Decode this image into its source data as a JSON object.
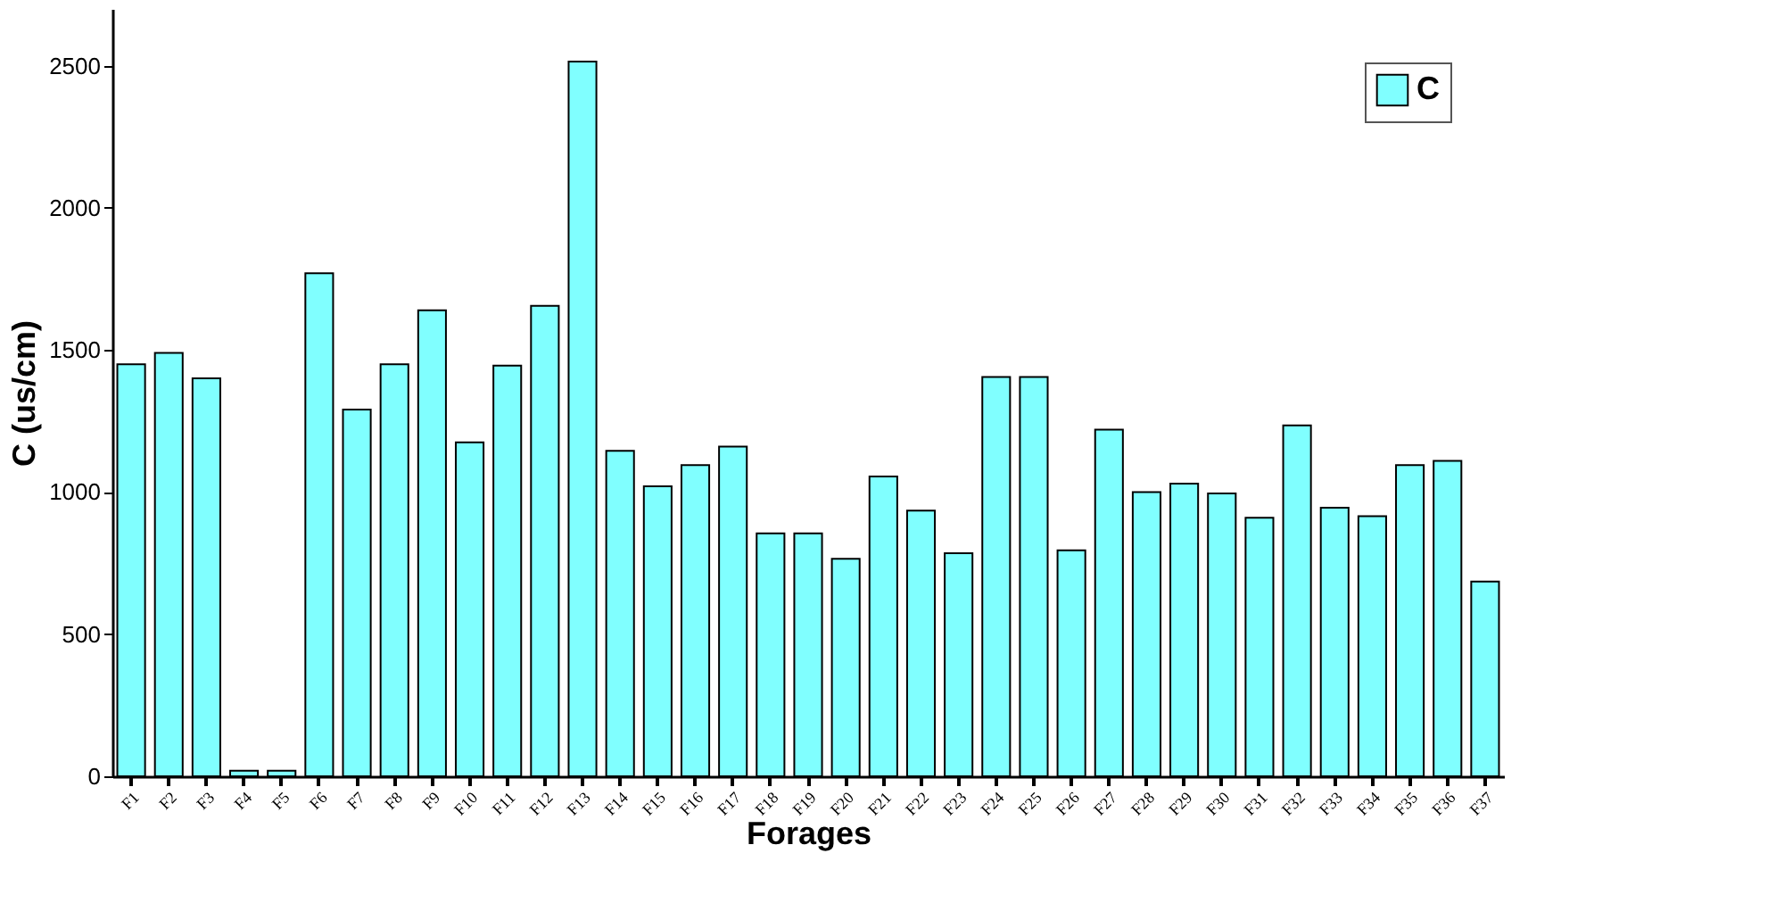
{
  "chart_data": {
    "type": "bar",
    "xlabel": "Forages",
    "ylabel": "C (us/cm)",
    "categories": [
      "F1",
      "F2",
      "F3",
      "F4",
      "F5",
      "F6",
      "F7",
      "F8",
      "F9",
      "F10",
      "F11",
      "F12",
      "F13",
      "F14",
      "F15",
      "F16",
      "F17",
      "F18",
      "F19",
      "F20",
      "F21",
      "F22",
      "F23",
      "F24",
      "F25",
      "F26",
      "F27",
      "F28",
      "F29",
      "F30",
      "F31",
      "F32",
      "F33",
      "F34",
      "F35",
      "F36",
      "F37"
    ],
    "series": [
      {
        "name": "C",
        "color": "#80ffff",
        "values": [
          1450,
          1490,
          1400,
          20,
          20,
          1770,
          1290,
          1450,
          1640,
          1175,
          1445,
          1655,
          2515,
          1145,
          1020,
          1095,
          1160,
          855,
          855,
          765,
          1055,
          935,
          785,
          1405,
          1405,
          795,
          1220,
          1000,
          1030,
          995,
          910,
          1235,
          945,
          915,
          1095,
          1110,
          685
        ]
      }
    ],
    "ylim": [
      0,
      2700
    ],
    "yticks": [
      0,
      500,
      1000,
      1500,
      2000,
      2500
    ],
    "grid": false,
    "legend": "top right"
  }
}
